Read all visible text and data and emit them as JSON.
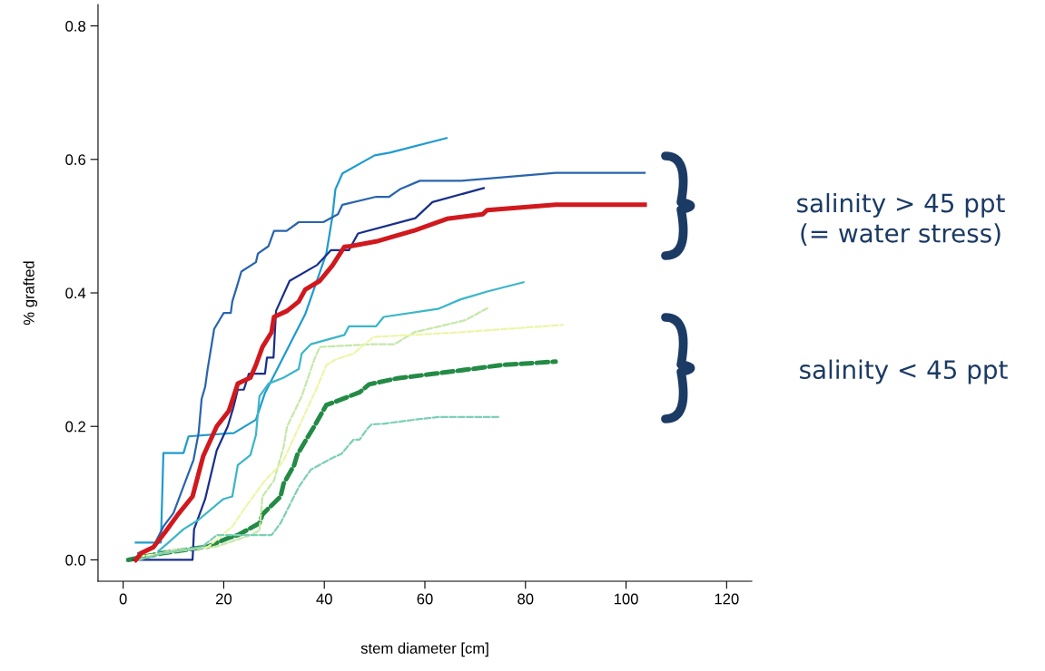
{
  "chart_data": {
    "type": "line",
    "xlabel": "stem diameter [cm]",
    "ylabel": "% grafted",
    "xlim": [
      -5,
      125
    ],
    "ylim": [
      -0.032,
      0.832
    ],
    "xticks": [
      0,
      20,
      40,
      60,
      80,
      100,
      120
    ],
    "yticks": [
      {
        "value": 0,
        "label": "0.0"
      },
      {
        "value": 0.2,
        "label": "0.2"
      },
      {
        "value": 0.4,
        "label": "0.4"
      },
      {
        "value": 0.6,
        "label": "0.6"
      },
      {
        "value": 0.8,
        "label": "0.8"
      }
    ],
    "grid": false,
    "marker": "none",
    "annotations": [
      "salinity > 45 ppt\n(= water stress)",
      "salinity < 45 ppt"
    ],
    "series": [
      {
        "color": "#1f9bcf",
        "line_style": "solid",
        "x": [
          2.5,
          7.5,
          8,
          12,
          13,
          22,
          26.4,
          28.2,
          36.2,
          40.4,
          41.6,
          42.2,
          43.6,
          50,
          53,
          64.3
        ],
        "values": [
          0.026,
          0.026,
          0.16,
          0.16,
          0.185,
          0.19,
          0.21,
          0.25,
          0.368,
          0.459,
          0.514,
          0.555,
          0.579,
          0.606,
          0.61,
          0.632
        ]
      },
      {
        "color": "#2a64ad",
        "line_style": "solid",
        "x": [
          3,
          6,
          8,
          10,
          12,
          14,
          15,
          15.6,
          16.3,
          16.8,
          18.1,
          19.2,
          20,
          21.4,
          21.7,
          22.6,
          23.5,
          26.4,
          26.8,
          28.9,
          30,
          32.5,
          34.9,
          39.8,
          42.7,
          43.6,
          50.3,
          52.9,
          55.2,
          59,
          67.2,
          86,
          103.7
        ],
        "values": [
          0.01,
          0.02,
          0.05,
          0.07,
          0.11,
          0.15,
          0.19,
          0.241,
          0.259,
          0.286,
          0.346,
          0.36,
          0.37,
          0.37,
          0.387,
          0.409,
          0.432,
          0.446,
          0.459,
          0.47,
          0.493,
          0.493,
          0.506,
          0.506,
          0.518,
          0.532,
          0.544,
          0.544,
          0.556,
          0.568,
          0.568,
          0.58,
          0.58
        ]
      },
      {
        "color": "#1a2f8a",
        "line_style": "solid",
        "x": [
          2,
          13.8,
          14.1,
          16.3,
          18.6,
          20.8,
          21.9,
          22.8,
          24,
          25,
          28.2,
          28.6,
          29.9,
          30.4,
          33.1,
          38.6,
          41.3,
          44.9,
          46.7,
          58.1,
          61.5,
          71.7
        ],
        "values": [
          0,
          0,
          0.046,
          0.091,
          0.164,
          0.2,
          0.228,
          0.255,
          0.255,
          0.279,
          0.279,
          0.303,
          0.303,
          0.373,
          0.418,
          0.442,
          0.464,
          0.464,
          0.489,
          0.512,
          0.536,
          0.557
        ]
      },
      {
        "color": "#d0191e",
        "line_style": "solid",
        "x": [
          2.5,
          3.6,
          6,
          8.3,
          10.9,
          13.8,
          15.9,
          18.6,
          21,
          22.8,
          25.3,
          26.4,
          27.7,
          29.5,
          30,
          32.6,
          34.9,
          36.2,
          39.1,
          41.6,
          44,
          45.2,
          50.3,
          58.1,
          64.4,
          71.5,
          72.4,
          86,
          103.7
        ],
        "values": [
          0,
          0.01,
          0.019,
          0.041,
          0.068,
          0.095,
          0.155,
          0.2,
          0.223,
          0.264,
          0.273,
          0.292,
          0.319,
          0.341,
          0.364,
          0.373,
          0.387,
          0.405,
          0.418,
          0.441,
          0.469,
          0.47,
          0.477,
          0.494,
          0.511,
          0.518,
          0.524,
          0.532,
          0.532
        ]
      },
      {
        "color": "#3bb6c8",
        "line_style": "solid",
        "x": [
          7,
          9,
          12,
          15,
          19.9,
          21.7,
          22.8,
          25.3,
          26.4,
          27.1,
          28.9,
          31.9,
          34.9,
          35.5,
          37.3,
          44,
          44.9,
          50.3,
          51.8,
          62.6,
          67,
          72.4,
          79.6
        ],
        "values": [
          0.013,
          0.026,
          0.046,
          0.06,
          0.091,
          0.095,
          0.142,
          0.157,
          0.187,
          0.245,
          0.264,
          0.273,
          0.286,
          0.309,
          0.323,
          0.337,
          0.35,
          0.35,
          0.364,
          0.376,
          0.39,
          0.402,
          0.416
        ]
      },
      {
        "color": "#c5e8a8",
        "line_style": "dashed",
        "x": [
          3,
          10,
          18.6,
          25.3,
          27.1,
          27.7,
          30,
          31.9,
          32.6,
          35.5,
          38,
          39.1,
          49.4,
          53.9,
          57.9,
          68,
          72.4
        ],
        "values": [
          0,
          0.015,
          0.02,
          0.037,
          0.044,
          0.095,
          0.119,
          0.169,
          0.2,
          0.245,
          0.3,
          0.319,
          0.323,
          0.323,
          0.341,
          0.359,
          0.377
        ]
      },
      {
        "color": "#eef5a8",
        "line_style": "dashed",
        "x": [
          3,
          16.8,
          21.7,
          24.6,
          28.2,
          31.7,
          38.6,
          40.4,
          42.2,
          45.8,
          49.8,
          57.2,
          67,
          87.4
        ],
        "values": [
          0.005,
          0.019,
          0.05,
          0.082,
          0.119,
          0.146,
          0.259,
          0.292,
          0.3,
          0.309,
          0.334,
          0.337,
          0.341,
          0.352
        ]
      },
      {
        "color": "#238b45",
        "line_style": "dashed",
        "x": [
          1,
          7.8,
          16.8,
          21,
          22.8,
          27.1,
          27.7,
          31.3,
          31.9,
          34,
          34.6,
          36.7,
          38,
          40.4,
          42.2,
          47,
          48.9,
          54.5,
          62,
          69.3,
          75.3,
          86
        ],
        "values": [
          0,
          0.01,
          0.02,
          0.033,
          0.037,
          0.055,
          0.068,
          0.095,
          0.114,
          0.142,
          0.157,
          0.184,
          0.2,
          0.232,
          0.237,
          0.251,
          0.263,
          0.272,
          0.279,
          0.286,
          0.292,
          0.297
        ]
      },
      {
        "color": "#7dcfb6",
        "line_style": "dashed",
        "x": [
          3,
          8,
          15.6,
          18.6,
          29.5,
          31.3,
          33.7,
          34.9,
          37.3,
          40.9,
          43.4,
          45.8,
          47,
          48.5,
          49.4,
          51.8,
          59,
          62.6,
          74.8
        ],
        "values": [
          0,
          0.01,
          0.019,
          0.037,
          0.037,
          0.055,
          0.091,
          0.109,
          0.135,
          0.15,
          0.159,
          0.18,
          0.18,
          0.196,
          0.203,
          0.204,
          0.211,
          0.214,
          0.214
        ]
      }
    ]
  }
}
